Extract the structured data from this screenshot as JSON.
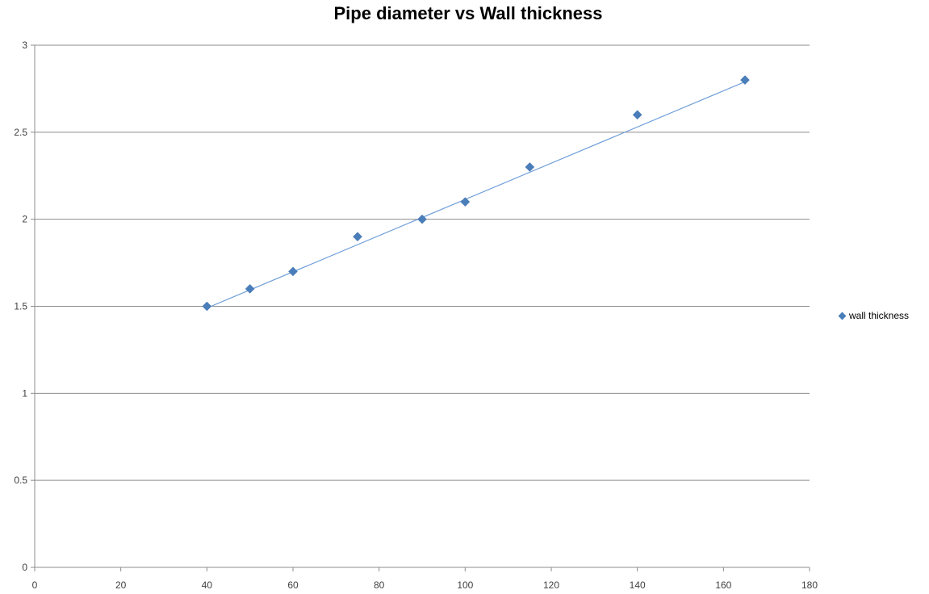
{
  "chart_data": {
    "type": "scatter",
    "title": "Pipe diameter vs Wall thickness",
    "xlabel": "",
    "ylabel": "",
    "xlim": [
      0,
      180
    ],
    "ylim": [
      0,
      3
    ],
    "x_ticks": [
      "0",
      "20",
      "40",
      "60",
      "80",
      "100",
      "120",
      "140",
      "160",
      "180"
    ],
    "y_ticks": [
      "0",
      "0.5",
      "1",
      "1.5",
      "2",
      "2.5",
      "3"
    ],
    "grid": "horizontal",
    "legend_position": "right",
    "series": [
      {
        "name": "wall thickness",
        "marker": "diamond",
        "color": "#4a7ebb",
        "x": [
          40,
          50,
          60,
          75,
          90,
          100,
          115,
          140,
          165
        ],
        "y": [
          1.5,
          1.6,
          1.7,
          1.9,
          2.0,
          2.1,
          2.3,
          2.6,
          2.8
        ]
      }
    ],
    "trendline": {
      "type": "linear",
      "color": "#6f9fd8",
      "x": [
        40,
        165
      ],
      "y": [
        1.49,
        2.79
      ]
    }
  }
}
